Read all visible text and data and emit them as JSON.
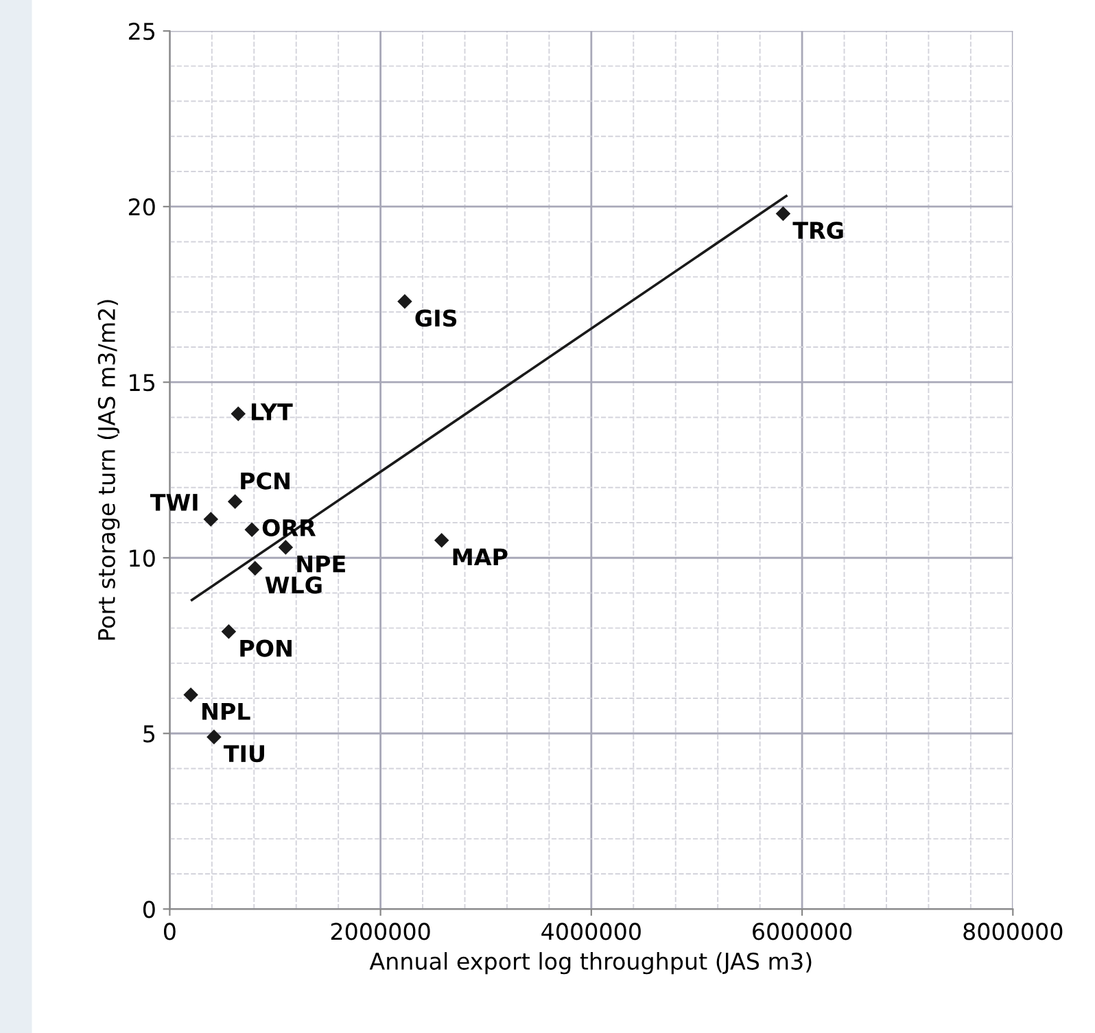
{
  "chart_data": {
    "type": "scatter",
    "xlabel": "Annual export log throughput (JAS m3)",
    "ylabel": "Port storage turn (JAS m3/m2)",
    "xlim": [
      0,
      8000000
    ],
    "xticks": [
      0,
      2000000,
      4000000,
      6000000,
      8000000
    ],
    "ylim": [
      0,
      25
    ],
    "yticks": [
      0,
      5,
      10,
      15,
      20,
      25
    ],
    "grid": true,
    "marker": "diamond",
    "series": [
      {
        "color": "#1a1a1a",
        "x": [
          5820000,
          2230000,
          2580000,
          650000,
          620000,
          390000,
          780000,
          1100000,
          810000,
          560000,
          200000,
          420000
        ],
        "values": [
          19.8,
          17.3,
          10.5,
          14.1,
          11.6,
          11.1,
          10.8,
          10.3,
          9.7,
          7.9,
          6.1,
          4.9
        ]
      },
      {
        "type": "line",
        "color": "#1a1a1a",
        "marker": "none",
        "x": [
          210000,
          5850000
        ],
        "values": [
          8.8,
          20.3
        ]
      }
    ],
    "annotations": [
      {
        "text": "TRG",
        "x": 5820000,
        "y": 19.8
      },
      {
        "text": "GIS",
        "x": 2230000,
        "y": 17.3
      },
      {
        "text": "MAP",
        "x": 2580000,
        "y": 10.5
      },
      {
        "text": "LYT",
        "x": 650000,
        "y": 14.1
      },
      {
        "text": "PCN",
        "x": 620000,
        "y": 11.6
      },
      {
        "text": "TWI",
        "x": 390000,
        "y": 11.1
      },
      {
        "text": "ORR",
        "x": 780000,
        "y": 10.8
      },
      {
        "text": "NPE",
        "x": 1100000,
        "y": 10.3
      },
      {
        "text": "WLG",
        "x": 810000,
        "y": 9.7
      },
      {
        "text": "PON",
        "x": 560000,
        "y": 7.9
      },
      {
        "text": "NPL",
        "x": 200000,
        "y": 6.1
      },
      {
        "text": "TIU",
        "x": 420000,
        "y": 4.9
      }
    ]
  }
}
